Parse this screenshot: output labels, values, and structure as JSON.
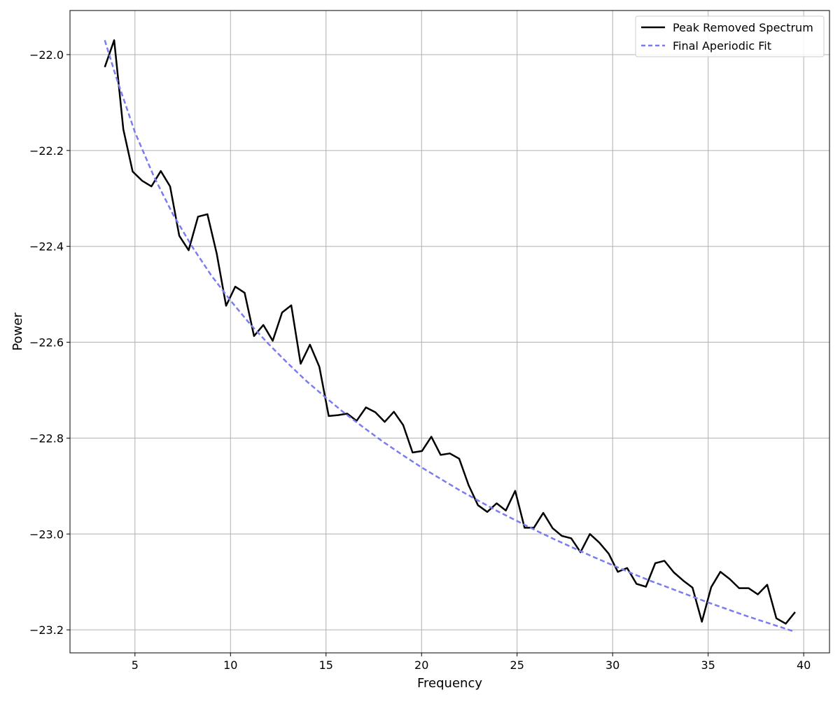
{
  "chart_data": {
    "type": "line",
    "title": "",
    "xlabel": "Frequency",
    "ylabel": "Power",
    "xlim": [
      1.6,
      41.35
    ],
    "ylim": [
      -23.248,
      -21.908
    ],
    "xticks": [
      5,
      10,
      15,
      20,
      25,
      30,
      35,
      40
    ],
    "xtick_labels": [
      "5",
      "10",
      "15",
      "20",
      "25",
      "30",
      "35",
      "40"
    ],
    "yticks": [
      -22.0,
      -22.2,
      -22.4,
      -22.6,
      -22.8,
      -23.0,
      -23.2
    ],
    "ytick_labels": [
      "−22.0",
      "−22.2",
      "−22.4",
      "−22.6",
      "−22.8",
      "−23.0",
      "−23.2"
    ],
    "grid": true,
    "legend_position": "top-right",
    "series": [
      {
        "name": "Peak Removed Spectrum",
        "color": "#000000",
        "style": "solid",
        "x": [
          3.42,
          3.91,
          4.39,
          4.88,
          5.37,
          5.86,
          6.35,
          6.84,
          7.32,
          7.81,
          8.3,
          8.79,
          9.28,
          9.77,
          10.25,
          10.74,
          11.23,
          11.72,
          12.21,
          12.7,
          13.18,
          13.67,
          14.16,
          14.65,
          15.14,
          15.63,
          16.11,
          16.6,
          17.09,
          17.58,
          18.07,
          18.55,
          19.04,
          19.53,
          20.02,
          20.51,
          21.0,
          21.48,
          21.97,
          22.46,
          22.95,
          23.44,
          23.93,
          24.41,
          24.9,
          25.39,
          25.88,
          26.37,
          26.86,
          27.34,
          27.83,
          28.32,
          28.81,
          29.3,
          29.79,
          30.27,
          30.76,
          31.25,
          31.74,
          32.23,
          32.71,
          33.2,
          33.69,
          34.18,
          34.67,
          35.16,
          35.64,
          36.13,
          36.62,
          37.11,
          37.6,
          38.09,
          38.57,
          39.06,
          39.55
        ],
        "values": [
          -22.026,
          -21.97,
          -22.156,
          -22.244,
          -22.263,
          -22.275,
          -22.243,
          -22.275,
          -22.378,
          -22.408,
          -22.338,
          -22.333,
          -22.415,
          -22.524,
          -22.484,
          -22.497,
          -22.587,
          -22.564,
          -22.597,
          -22.538,
          -22.523,
          -22.645,
          -22.605,
          -22.651,
          -22.754,
          -22.752,
          -22.749,
          -22.764,
          -22.736,
          -22.746,
          -22.766,
          -22.745,
          -22.773,
          -22.83,
          -22.827,
          -22.797,
          -22.835,
          -22.832,
          -22.843,
          -22.898,
          -22.94,
          -22.954,
          -22.936,
          -22.951,
          -22.91,
          -22.987,
          -22.987,
          -22.956,
          -22.988,
          -23.004,
          -23.009,
          -23.038,
          -23.0,
          -23.018,
          -23.041,
          -23.079,
          -23.071,
          -23.104,
          -23.11,
          -23.061,
          -23.056,
          -23.08,
          -23.097,
          -23.112,
          -23.183,
          -23.111,
          -23.079,
          -23.094,
          -23.113,
          -23.113,
          -23.126,
          -23.106,
          -23.176,
          -23.187,
          -23.163
        ]
      },
      {
        "name": "Final Aperiodic Fit",
        "color": "#7b7bf2",
        "style": "dashed",
        "x": [
          3.42,
          4.0,
          5.0,
          6.0,
          7.0,
          8.0,
          9.0,
          10.0,
          11.0,
          12.0,
          13.0,
          14.0,
          15.0,
          16.0,
          17.0,
          18.0,
          19.0,
          20.0,
          21.0,
          22.0,
          23.0,
          24.0,
          25.0,
          26.0,
          27.0,
          28.0,
          29.0,
          30.0,
          31.0,
          32.0,
          33.0,
          34.0,
          35.0,
          36.0,
          37.0,
          38.0,
          39.0,
          39.55
        ],
        "values": [
          -21.97,
          -22.045,
          -22.162,
          -22.255,
          -22.334,
          -22.401,
          -22.461,
          -22.513,
          -22.561,
          -22.604,
          -22.644,
          -22.682,
          -22.716,
          -22.749,
          -22.779,
          -22.808,
          -22.835,
          -22.861,
          -22.885,
          -22.909,
          -22.931,
          -22.953,
          -22.973,
          -22.993,
          -23.012,
          -23.03,
          -23.048,
          -23.065,
          -23.082,
          -23.098,
          -23.113,
          -23.128,
          -23.143,
          -23.157,
          -23.171,
          -23.184,
          -23.197,
          -23.204
        ]
      }
    ]
  }
}
